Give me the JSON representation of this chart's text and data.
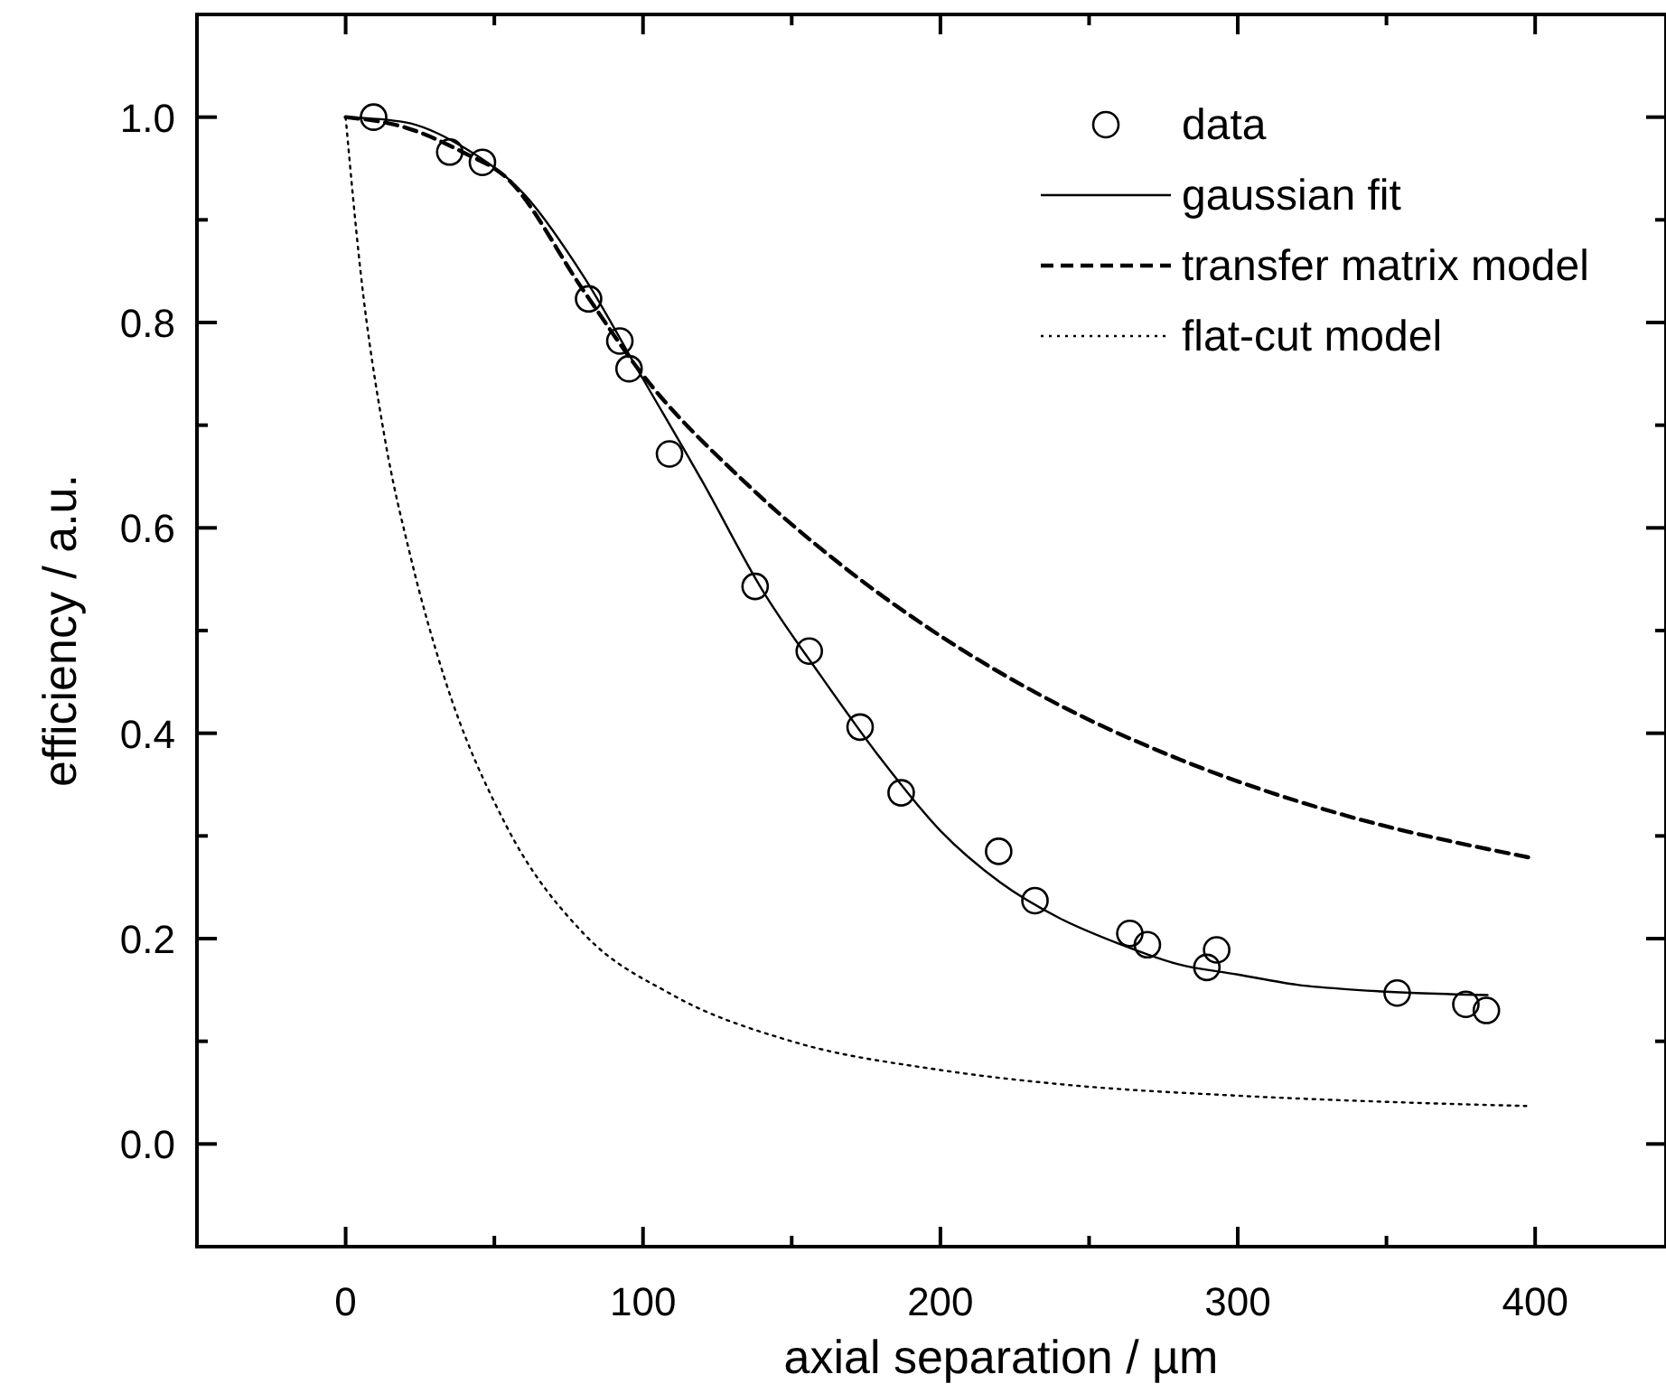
{
  "chart_data": {
    "type": "line",
    "xlabel": "axial separation / µm",
    "ylabel": "efficiency / a.u.",
    "xlim": [
      -50,
      444
    ],
    "ylim": [
      -0.1,
      1.1
    ],
    "xticks": [
      0,
      {
        "value": 50,
        "label": null
      },
      100,
      {
        "value": 150,
        "label": null
      },
      200,
      {
        "value": 250,
        "label": null
      },
      300,
      {
        "value": 350,
        "label": null
      },
      400
    ],
    "yticks": [
      {
        "value": 0,
        "label": "0.0"
      },
      {
        "value": 0.1,
        "label": null
      },
      {
        "value": 0.2,
        "label": "0.2"
      },
      {
        "value": 0.3,
        "label": null
      },
      {
        "value": 0.4,
        "label": "0.4"
      },
      {
        "value": 0.5,
        "label": null
      },
      {
        "value": 0.6,
        "label": "0.6"
      },
      {
        "value": 0.7,
        "label": null
      },
      {
        "value": 0.8,
        "label": "0.8"
      },
      {
        "value": 0.9,
        "label": null
      },
      {
        "value": 1.0,
        "label": "1.0"
      }
    ],
    "grid": false,
    "legend": "top right",
    "series": [
      {
        "name": "data",
        "type": "scatter",
        "marker": "circle",
        "color": "#000000",
        "x": [
          9.4,
          35,
          46,
          81.7,
          92.2,
          95.3,
          108.9,
          137.7,
          155.9,
          173,
          186.8,
          219.6,
          231.8,
          263.7,
          269.6,
          289.6,
          292.9,
          353.6,
          376.7,
          383.6
        ],
        "values": [
          1.0,
          0.966,
          0.956,
          0.823,
          0.782,
          0.755,
          0.672,
          0.543,
          0.48,
          0.406,
          0.342,
          0.285,
          0.237,
          0.205,
          0.194,
          0.172,
          0.189,
          0.147,
          0.136,
          0.13
        ]
      },
      {
        "name": "gaussian fit",
        "line_style": "solid",
        "color": "#000000",
        "x": [
          0,
          20,
          40,
          60,
          80,
          100,
          120,
          140,
          160,
          180,
          200,
          220,
          240,
          260,
          280,
          300,
          320,
          340,
          360,
          384
        ],
        "values": [
          1.0,
          0.995,
          0.97,
          0.925,
          0.845,
          0.745,
          0.645,
          0.54,
          0.455,
          0.375,
          0.305,
          0.255,
          0.22,
          0.195,
          0.175,
          0.165,
          0.155,
          0.15,
          0.147,
          0.145
        ]
      },
      {
        "name": "transfer matrix model",
        "line_style": "dashed",
        "color": "#000000",
        "x": [
          0,
          20,
          40,
          53.7,
          80,
          98.3,
          134.8,
          165.3,
          195.7,
          236.3,
          280.9,
          333.7,
          398
        ],
        "values": [
          1.0,
          0.99,
          0.965,
          0.942,
          0.831,
          0.755,
          0.643,
          0.567,
          0.503,
          0.433,
          0.374,
          0.322,
          0.279
        ]
      },
      {
        "name": "flat-cut model",
        "line_style": "dotted",
        "color": "#000000",
        "x": [
          0,
          5,
          13,
          22,
          33,
          54,
          80,
          110,
          150,
          200,
          241,
          300,
          350,
          397
        ],
        "values": [
          1.0,
          0.85,
          0.69,
          0.57,
          0.456,
          0.31,
          0.205,
          0.145,
          0.1,
          0.072,
          0.058,
          0.047,
          0.041,
          0.037
        ]
      }
    ]
  }
}
